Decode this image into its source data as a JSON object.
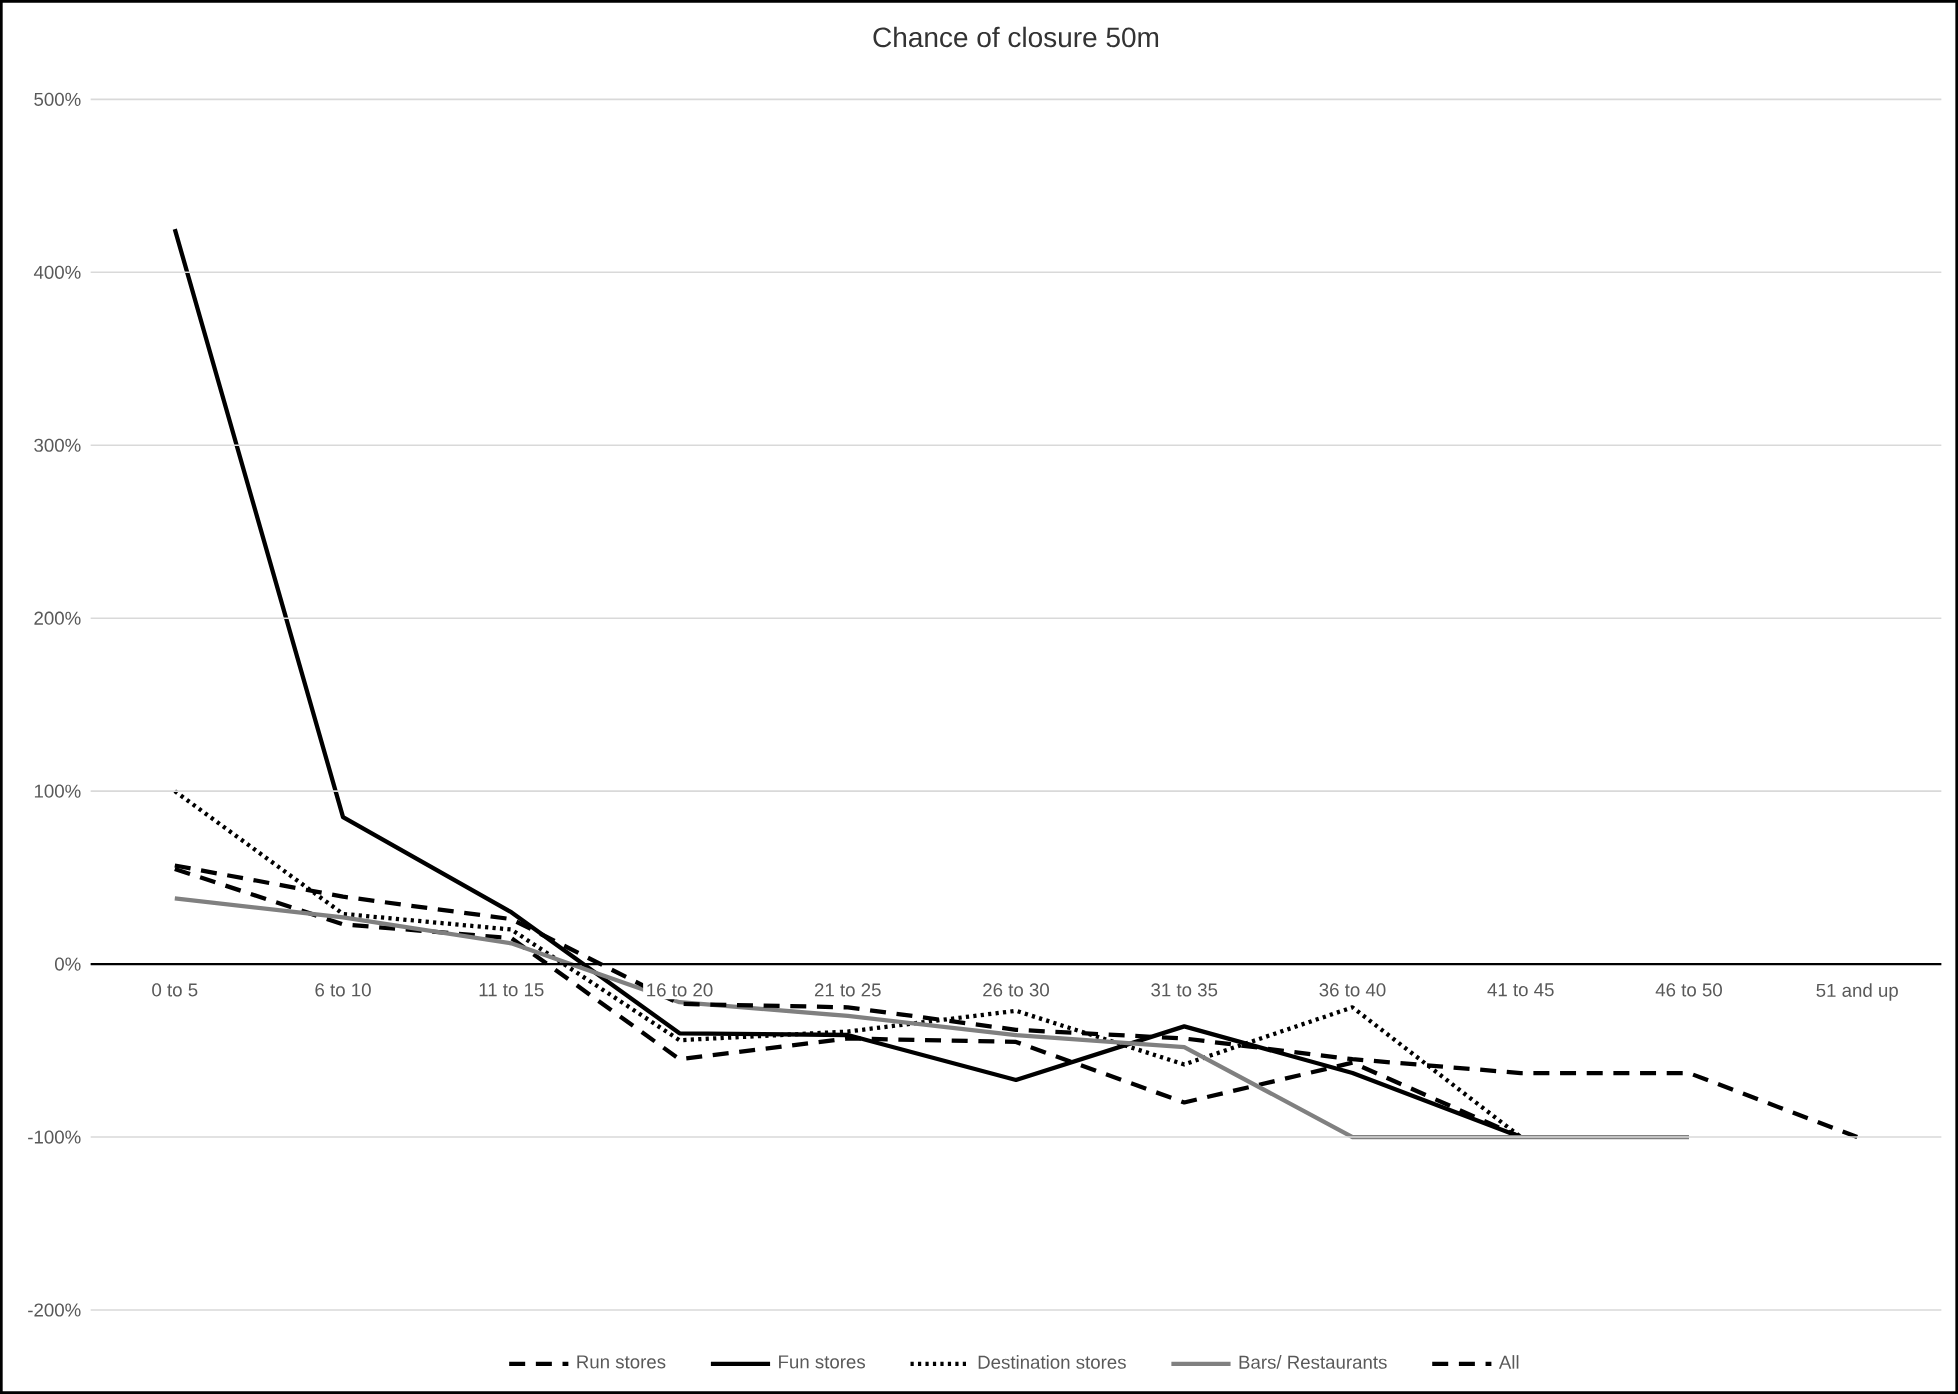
{
  "chart_data": {
    "type": "line",
    "title": "Chance of closure 50m",
    "categories": [
      "0 to 5",
      "6 to 10",
      "11 to 15",
      "16 to 20",
      "21 to 25",
      "26 to 30",
      "31 to 35",
      "36 to 40",
      "41 to 45",
      "46 to 50",
      "51 and up"
    ],
    "series": [
      {
        "name": "Run stores",
        "color": "#000000",
        "line_style": "dashed",
        "values": [
          55,
          23,
          15,
          -55,
          -43,
          -45,
          -80,
          -57,
          -100,
          null,
          null
        ]
      },
      {
        "name": "Fun stores",
        "color": "#000000",
        "line_style": "solid",
        "values": [
          425,
          85,
          30,
          -40,
          -41,
          -67,
          -36,
          -63,
          -100,
          null,
          null
        ]
      },
      {
        "name": "Destination stores",
        "color": "#000000",
        "line_style": "dotted",
        "values": [
          100,
          29,
          20,
          -44,
          -39,
          -27,
          -58,
          -25,
          -100,
          null,
          null
        ]
      },
      {
        "name": "Bars/ Restaurants",
        "color": "#808080",
        "line_style": "solid",
        "values": [
          38,
          27,
          12,
          -22,
          -30,
          -41,
          -48,
          -100,
          -100,
          -100,
          null
        ]
      },
      {
        "name": "All",
        "color": "#000000",
        "line_style": "dashed",
        "values": [
          57,
          39,
          26,
          -23,
          -25,
          -38,
          -43,
          -55,
          -63,
          -63,
          -100
        ]
      }
    ],
    "ylim": [
      -200,
      500
    ],
    "yticks": [
      {
        "value": -200,
        "label": "-200%"
      },
      {
        "value": -100,
        "label": "-100%"
      },
      {
        "value": 0,
        "label": "0%"
      },
      {
        "value": 100,
        "label": "100%"
      },
      {
        "value": 200,
        "label": "200%"
      },
      {
        "value": 300,
        "label": "300%"
      },
      {
        "value": 400,
        "label": "400%"
      },
      {
        "value": 500,
        "label": "500%"
      }
    ],
    "grid": "y",
    "legend": "bottom",
    "marker": "none"
  }
}
